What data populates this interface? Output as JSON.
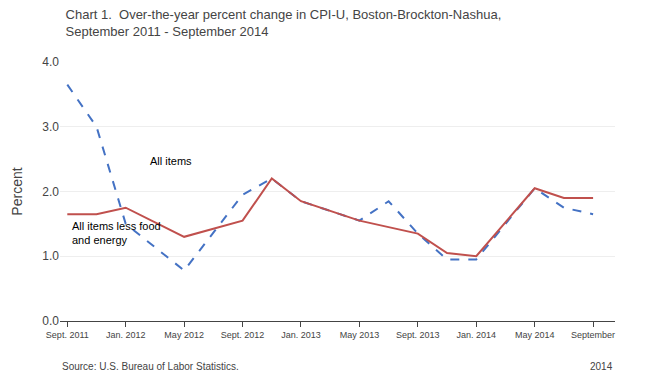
{
  "chart_data": {
    "type": "line",
    "title": "Chart 1.  Over-the-year percent change in CPI-U, Boston-Brockton-Nashua,",
    "subtitle": "September 2011 - September 2014",
    "ylabel": "Percent",
    "source": "Source: U.S. Bureau of Labor Statistics.",
    "source_year": "2014",
    "x": [
      0,
      2,
      4,
      8,
      12,
      14,
      16,
      20,
      22,
      24,
      26,
      28,
      32,
      34,
      36
    ],
    "series": [
      {
        "color": "#4472C4",
        "line_style": "dashed",
        "values": [
          3.65,
          3.0,
          1.5,
          0.78,
          1.95,
          2.2,
          1.85,
          1.55,
          1.85,
          1.35,
          0.95,
          0.95,
          2.05,
          1.75,
          1.65
        ]
      },
      {
        "color": "#C0504D",
        "line_style": "solid",
        "values": [
          1.65,
          1.65,
          1.75,
          1.3,
          1.55,
          2.2,
          1.85,
          1.55,
          1.45,
          1.35,
          1.05,
          1.0,
          2.05,
          1.9,
          1.9
        ]
      }
    ],
    "annotations": [
      {
        "text": "All items",
        "x": 5.5,
        "y": 2.35
      },
      {
        "text": "All items less food\nand energy",
        "x": 0.2,
        "y": 1.12
      }
    ],
    "xlim": [
      -0.5,
      37.5
    ],
    "xticks": [
      {
        "value": 0,
        "label": "Sept. 2011"
      },
      {
        "value": 4,
        "label": "Jan. 2012"
      },
      {
        "value": 8,
        "label": "May 2012"
      },
      {
        "value": 12,
        "label": "Sept. 2012"
      },
      {
        "value": 16,
        "label": "Jan. 2013"
      },
      {
        "value": 20,
        "label": "May 2013"
      },
      {
        "value": 24,
        "label": "Sept. 2013"
      },
      {
        "value": 28,
        "label": "Jan. 2014"
      },
      {
        "value": 32,
        "label": "May 2014"
      },
      {
        "value": 36,
        "label": "September"
      }
    ],
    "ylim": [
      0.0,
      4.0
    ],
    "yticks": [
      {
        "value": 0.0,
        "label": "0.0"
      },
      {
        "value": 1.0,
        "label": "1.0"
      },
      {
        "value": 2.0,
        "label": "2.0"
      },
      {
        "value": 3.0,
        "label": "3.0"
      },
      {
        "value": 4.0,
        "label": "4.0"
      }
    ],
    "grid": true
  }
}
